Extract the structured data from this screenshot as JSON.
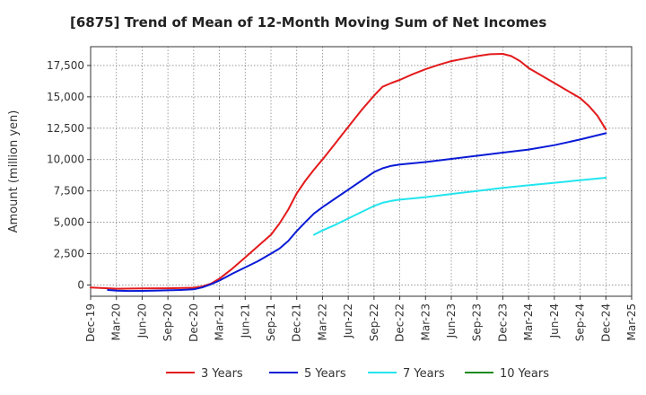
{
  "chart_data": {
    "type": "line",
    "title": "[6875]  Trend of Mean of 12-Month Moving Sum of Net Incomes",
    "ylabel": "Amount (million yen)",
    "xlabel": "",
    "x_tick_labels": [
      "Dec-19",
      "Mar-20",
      "Jun-20",
      "Sep-20",
      "Dec-20",
      "Mar-21",
      "Jun-21",
      "Sep-21",
      "Dec-21",
      "Mar-22",
      "Jun-22",
      "Sep-22",
      "Dec-22",
      "Mar-23",
      "Jun-23",
      "Sep-23",
      "Dec-23",
      "Mar-24",
      "Jun-24",
      "Sep-24",
      "Dec-24",
      "Mar-25"
    ],
    "y_ticks": [
      0,
      2500,
      5000,
      7500,
      10000,
      12500,
      15000,
      17500
    ],
    "y_tick_labels": [
      "0",
      "2,500",
      "5,000",
      "7,500",
      "10,000",
      "12,500",
      "15,000",
      "17,500"
    ],
    "ylim": [
      -900,
      19000
    ],
    "xlim": [
      0,
      21
    ],
    "grid": true,
    "legend_position": "bottom",
    "series": [
      {
        "name": "3 Years",
        "color": "#e31a1c",
        "x": [
          0,
          1,
          2,
          3,
          4,
          4.33,
          4.67,
          5,
          5.5,
          6,
          6.5,
          7,
          7.33,
          7.67,
          8,
          8.33,
          8.67,
          9,
          9.5,
          10,
          10.5,
          11,
          11.33,
          11.67,
          12,
          12.5,
          13,
          13.5,
          14,
          14.5,
          15,
          15.5,
          16,
          16.33,
          16.67,
          17,
          17.5,
          18,
          18.5,
          19,
          19.33,
          19.67,
          20
        ],
        "y": [
          -200,
          -300,
          -280,
          -260,
          -220,
          -120,
          100,
          500,
          1300,
          2200,
          3100,
          4000,
          4900,
          6000,
          7300,
          8300,
          9200,
          10000,
          11300,
          12600,
          13900,
          15100,
          15800,
          16100,
          16350,
          16800,
          17200,
          17550,
          17850,
          18050,
          18250,
          18400,
          18430,
          18250,
          17850,
          17300,
          16700,
          16100,
          15500,
          14900,
          14300,
          13500,
          12400
        ]
      },
      {
        "name": "5 Years",
        "color": "#0a1bd6",
        "x": [
          0.67,
          1,
          1.5,
          2,
          2.5,
          3,
          3.5,
          4,
          4.33,
          4.67,
          5,
          5.5,
          6,
          6.5,
          7,
          7.33,
          7.67,
          8,
          8.33,
          8.67,
          9,
          9.5,
          10,
          10.5,
          11,
          11.33,
          11.67,
          12,
          13,
          14,
          15,
          16,
          17,
          18,
          19,
          20
        ],
        "y": [
          -400,
          -450,
          -480,
          -470,
          -450,
          -430,
          -400,
          -350,
          -200,
          50,
          350,
          900,
          1400,
          1900,
          2500,
          2900,
          3500,
          4300,
          5000,
          5700,
          6200,
          6900,
          7600,
          8300,
          9000,
          9300,
          9500,
          9600,
          9800,
          10050,
          10300,
          10550,
          10800,
          11150,
          11600,
          12100
        ]
      },
      {
        "name": "7 Years",
        "color": "#22e5ee",
        "x": [
          8.67,
          9,
          9.5,
          10,
          10.5,
          11,
          11.33,
          11.67,
          12,
          13,
          14,
          15,
          16,
          17,
          18,
          19,
          20
        ],
        "y": [
          4000,
          4350,
          4800,
          5300,
          5800,
          6300,
          6550,
          6700,
          6800,
          7000,
          7250,
          7500,
          7750,
          7950,
          8150,
          8350,
          8550
        ]
      },
      {
        "name": "10 Years",
        "color": "#1f8a1f",
        "x": [],
        "y": []
      }
    ]
  }
}
